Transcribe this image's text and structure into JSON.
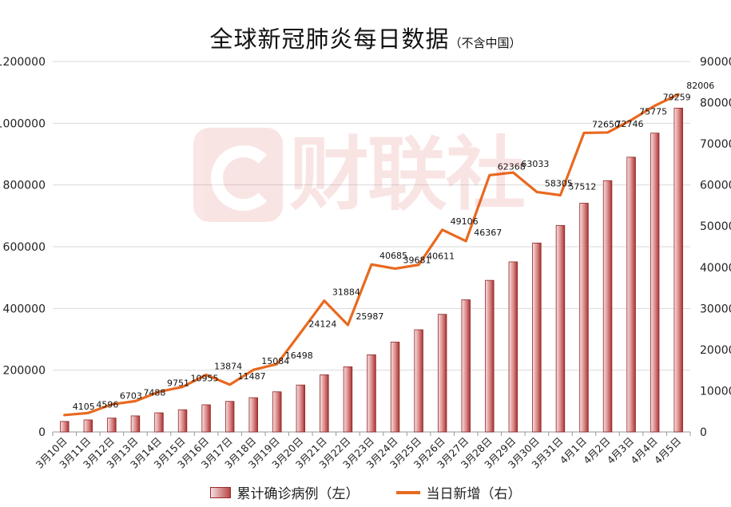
{
  "title": "全球新冠肺炎每日数据",
  "subtitle": "（不含中国）",
  "watermark_text": "财联社",
  "legend": {
    "bars_label": "累计确诊病例（左）",
    "line_label": "当日新增（右）"
  },
  "chart_data": {
    "type": "bar+line",
    "categories": [
      "3月10日",
      "3月11日",
      "3月12日",
      "3月13日",
      "3月14日",
      "3月15日",
      "3月16日",
      "3月17日",
      "3月18日",
      "3月19日",
      "3月20日",
      "3月21日",
      "3月22日",
      "3月23日",
      "3月24日",
      "3月25日",
      "3月26日",
      "3月27日",
      "3月28日",
      "3月29日",
      "3月30日",
      "3月31日",
      "4月1日",
      "4月2日",
      "4月3日",
      "4月4日",
      "4月5日"
    ],
    "series": [
      {
        "name": "累计确诊病例（左）",
        "type": "bar",
        "axis": "left",
        "color": "#b03a3a",
        "values": [
          34000,
          39000,
          45000,
          52000,
          62000,
          72000,
          88000,
          99000,
          111000,
          130000,
          152000,
          185000,
          211000,
          250000,
          291000,
          331000,
          381000,
          428000,
          491000,
          551000,
          612000,
          669000,
          741000,
          814000,
          890000,
          968000,
          1049000
        ]
      },
      {
        "name": "当日新增（右）",
        "type": "line",
        "axis": "right",
        "color": "#e8691f",
        "values": [
          4105,
          4596,
          6703,
          7488,
          9751,
          10955,
          13874,
          11487,
          15084,
          16498,
          24124,
          31884,
          25987,
          40685,
          39681,
          40611,
          49106,
          46367,
          62368,
          63033,
          58305,
          57512,
          72650,
          72746,
          75775,
          79259,
          82006
        ]
      }
    ],
    "y_left": {
      "min": 0,
      "max": 1200000,
      "step": 200000,
      "ticks": [
        "0",
        "200000",
        "400000",
        "600000",
        "800000",
        "1000000",
        "1200000"
      ]
    },
    "y_right": {
      "min": 0,
      "max": 90000,
      "step": 10000,
      "ticks": [
        "0",
        "10000",
        "20000",
        "30000",
        "40000",
        "50000",
        "60000",
        "70000",
        "80000",
        "90000"
      ]
    },
    "grid": true
  }
}
